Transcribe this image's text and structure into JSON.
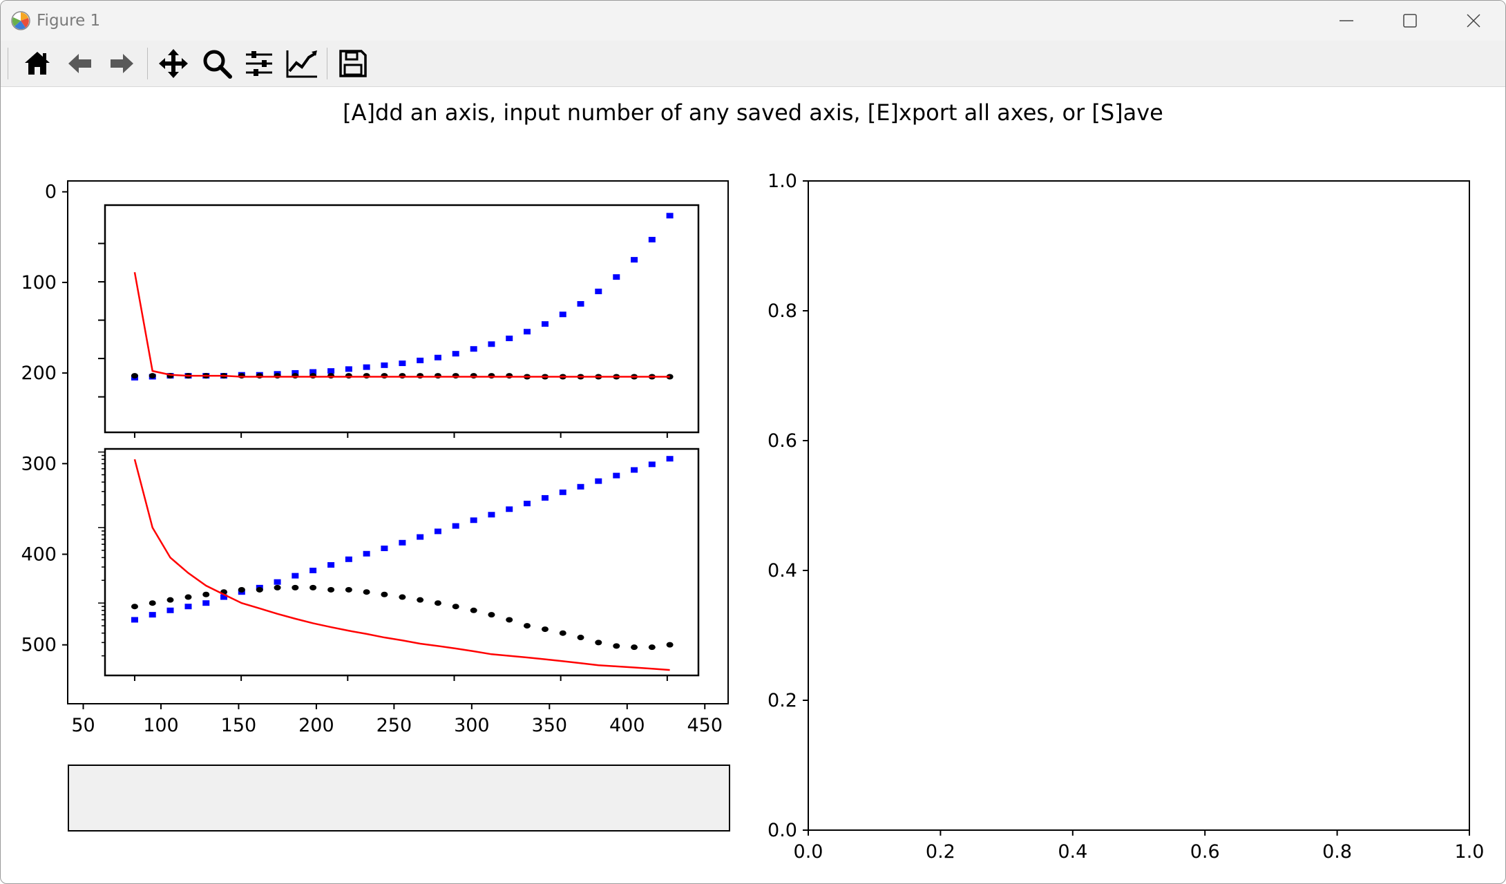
{
  "window": {
    "title": "Figure 1",
    "icons": {
      "app": "matplotlib-icon",
      "minimize": "minimize-icon",
      "maximize": "maximize-icon",
      "close": "close-icon"
    }
  },
  "toolbar": {
    "buttons": [
      {
        "name": "home-button",
        "icon": "home-icon"
      },
      {
        "name": "back-button",
        "icon": "arrow-left-icon"
      },
      {
        "name": "forward-button",
        "icon": "arrow-right-icon"
      },
      {
        "name": "pan-button",
        "icon": "move-icon"
      },
      {
        "name": "zoom-button",
        "icon": "zoom-icon"
      },
      {
        "name": "configure-subplots-button",
        "icon": "sliders-icon"
      },
      {
        "name": "edit-axes-button",
        "icon": "line-chart-icon"
      },
      {
        "name": "save-button",
        "icon": "floppy-disk-icon"
      }
    ]
  },
  "prompt": "[A]dd an axis, input number of any saved axis, [E]xport all axes, or [S]ave",
  "colors": {
    "blue": "#0000ff",
    "black": "#000000",
    "red": "#ff0000",
    "textbox_bg": "#f0f0f0"
  },
  "chart_data": [
    {
      "type": "image",
      "description_role": "outer image axes",
      "xticks": [
        50,
        100,
        150,
        200,
        250,
        300,
        350,
        400,
        450
      ],
      "yticks": [
        0,
        100,
        200,
        300,
        400,
        500
      ],
      "xlim": [
        40,
        465
      ],
      "ylim": [
        565,
        -12
      ]
    },
    {
      "type": "scatter",
      "role": "upper inset panel",
      "x": [
        80,
        91.7,
        103.4,
        115.2,
        126.9,
        138.6,
        150.3,
        162.1,
        173.8,
        185.5,
        197.2,
        209.0,
        220.7,
        232.4,
        244.1,
        255.9,
        267.6,
        279.3,
        291.0,
        302.8,
        314.5,
        326.2,
        337.9,
        349.7,
        361.4,
        373.1,
        384.8,
        396.6,
        408.3,
        420.0,
        431.7
      ],
      "series": [
        {
          "name": "",
          "color": "blue",
          "marker": "square",
          "values": [
            6.0,
            5.9,
            5.8,
            5.8,
            5.8,
            5.8,
            5.7,
            5.7,
            5.6,
            5.5,
            5.4,
            5.3,
            5.1,
            4.9,
            4.7,
            4.5,
            4.2,
            3.9,
            3.5,
            3.0,
            2.5,
            1.9,
            1.2,
            0.4,
            -0.6,
            -1.7,
            -3.0,
            -4.5,
            -6.3,
            -8.4,
            -10.9
          ]
        },
        {
          "name": "",
          "color": "black",
          "marker": "circle",
          "values": [
            5.8,
            5.8,
            5.8,
            5.8,
            5.8,
            5.8,
            5.8,
            5.8,
            5.8,
            5.8,
            5.8,
            5.8,
            5.8,
            5.8,
            5.8,
            5.8,
            5.8,
            5.8,
            5.8,
            5.8,
            5.8,
            5.8,
            5.9,
            5.9,
            5.9,
            5.9,
            5.9,
            5.9,
            5.9,
            5.9,
            5.9
          ]
        },
        {
          "name": "",
          "color": "red",
          "marker": "line",
          "values": [
            -5.0,
            5.3,
            5.7,
            5.8,
            5.8,
            5.8,
            5.9,
            5.9,
            5.9,
            5.9,
            5.9,
            5.9,
            5.9,
            5.9,
            5.9,
            5.9,
            5.9,
            5.9,
            5.9,
            5.9,
            5.9,
            5.9,
            5.9,
            5.9,
            5.9,
            5.9,
            5.9,
            5.9,
            5.9,
            5.9,
            5.9
          ]
        }
      ],
      "ylim": [
        11.7,
        -12.0
      ]
    },
    {
      "type": "scatter",
      "role": "lower inset panel",
      "x": [
        80,
        91.7,
        103.4,
        115.2,
        126.9,
        138.6,
        150.3,
        162.1,
        173.8,
        185.5,
        197.2,
        209.0,
        220.7,
        232.4,
        244.1,
        255.9,
        267.6,
        279.3,
        291.0,
        302.8,
        314.5,
        326.2,
        337.9,
        349.7,
        361.4,
        373.1,
        384.8,
        396.6,
        408.3,
        420.0,
        431.7
      ],
      "series": [
        {
          "name": "",
          "color": "blue",
          "marker": "square",
          "values": [
            0.06,
            0.07,
            0.08,
            0.09,
            0.1,
            0.12,
            0.14,
            0.16,
            0.19,
            0.23,
            0.27,
            0.32,
            0.38,
            0.45,
            0.53,
            0.63,
            0.75,
            0.89,
            1.05,
            1.25,
            1.48,
            1.75,
            2.08,
            2.47,
            2.93,
            3.47,
            4.12,
            4.88,
            5.79,
            6.87,
            8.15
          ]
        },
        {
          "name": "",
          "color": "black",
          "marker": "circle",
          "values": [
            0.09,
            0.1,
            0.11,
            0.12,
            0.13,
            0.14,
            0.15,
            0.15,
            0.16,
            0.16,
            0.16,
            0.15,
            0.15,
            0.14,
            0.13,
            0.12,
            0.11,
            0.1,
            0.09,
            0.08,
            0.07,
            0.06,
            0.05,
            0.045,
            0.04,
            0.035,
            0.03,
            0.027,
            0.026,
            0.026,
            0.028
          ]
        },
        {
          "name": "",
          "color": "red",
          "marker": "line",
          "values": [
            8.0,
            1.0,
            0.4,
            0.25,
            0.17,
            0.13,
            0.1,
            0.085,
            0.072,
            0.062,
            0.054,
            0.048,
            0.043,
            0.039,
            0.035,
            0.032,
            0.029,
            0.027,
            0.025,
            0.023,
            0.021,
            0.02,
            0.019,
            0.018,
            0.017,
            0.016,
            0.015,
            0.0145,
            0.014,
            0.0135,
            0.013
          ]
        }
      ],
      "yscale": "log",
      "ylim": [
        0.011,
        11
      ]
    },
    {
      "type": "scatter",
      "role": "empty axes",
      "xticks": [
        "0.0",
        "0.2",
        "0.4",
        "0.6",
        "0.8",
        "1.0"
      ],
      "yticks": [
        "0.0",
        "0.2",
        "0.4",
        "0.6",
        "0.8",
        "1.0"
      ],
      "xlim": [
        0,
        1
      ],
      "ylim": [
        0,
        1
      ],
      "series": []
    }
  ]
}
